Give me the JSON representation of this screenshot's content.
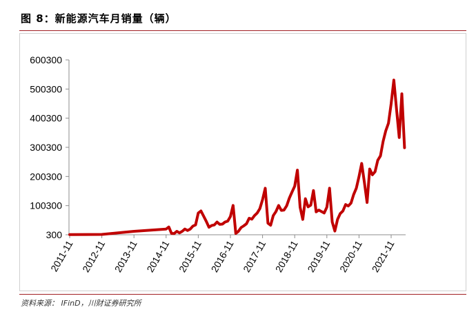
{
  "header": {
    "title": "图 8：新能源汽车月销量（辆）"
  },
  "footer": {
    "source": "资料来源： IFinD，川财证券研究所"
  },
  "colors": {
    "line": "#c00000",
    "rule": "#a11e22",
    "axis": "#8c8c8c"
  },
  "chart_data": {
    "type": "line",
    "title": "",
    "xlabel": "",
    "ylabel": "",
    "ylim": [
      300,
      600300
    ],
    "y_ticks": [
      300,
      100300,
      200300,
      300300,
      400300,
      500300,
      600300
    ],
    "x_tick_labels": [
      "2011-11",
      "2012-11",
      "2013-11",
      "2014-11",
      "2015-11",
      "2016-11",
      "2017-11",
      "2018-11",
      "2019-11",
      "2020-11",
      "2021-11"
    ],
    "grid": false,
    "legend": "none",
    "series": [
      {
        "x": [
          "2011-11",
          "2012-11",
          "2013-11",
          "2014-11",
          "2014-12",
          "2015-01",
          "2015-02",
          "2015-03",
          "2015-04",
          "2015-05",
          "2015-06",
          "2015-07",
          "2015-08",
          "2015-09",
          "2015-10",
          "2015-11",
          "2015-12",
          "2016-01",
          "2016-02",
          "2016-03",
          "2016-04",
          "2016-05",
          "2016-06",
          "2016-07",
          "2016-08",
          "2016-09",
          "2016-10",
          "2016-11",
          "2016-12",
          "2017-01",
          "2017-02",
          "2017-03",
          "2017-04",
          "2017-05",
          "2017-06",
          "2017-07",
          "2017-08",
          "2017-09",
          "2017-10",
          "2017-11",
          "2017-12",
          "2018-01",
          "2018-02",
          "2018-03",
          "2018-04",
          "2018-05",
          "2018-06",
          "2018-07",
          "2018-08",
          "2018-09",
          "2018-10",
          "2018-11",
          "2018-12",
          "2019-01",
          "2019-02",
          "2019-03",
          "2019-04",
          "2019-05",
          "2019-06",
          "2019-07",
          "2019-08",
          "2019-09",
          "2019-10",
          "2019-11",
          "2019-12",
          "2020-01",
          "2020-02",
          "2020-03",
          "2020-04",
          "2020-05",
          "2020-06",
          "2020-07",
          "2020-08",
          "2020-09",
          "2020-10",
          "2020-11",
          "2020-12",
          "2021-01",
          "2021-02",
          "2021-03",
          "2021-04",
          "2021-05",
          "2021-06",
          "2021-07",
          "2021-08",
          "2021-09",
          "2021-10",
          "2021-11",
          "2021-12",
          "2022-01",
          "2022-02",
          "2022-03",
          "2022-04"
        ],
        "values": [
          1000,
          1500,
          12000,
          20000,
          27000,
          5000,
          4500,
          12000,
          7000,
          12000,
          20000,
          15000,
          20000,
          30000,
          34000,
          75000,
          82000,
          64000,
          46000,
          26000,
          32000,
          34000,
          44000,
          36000,
          37000,
          44000,
          47000,
          63000,
          101000,
          5000,
          12000,
          25000,
          31000,
          38000,
          57000,
          54000,
          66000,
          75000,
          90000,
          121000,
          160000,
          40000,
          33000,
          66000,
          80000,
          101000,
          84000,
          85000,
          100000,
          126000,
          147000,
          167000,
          222000,
          95000,
          53000,
          124000,
          96000,
          102000,
          152000,
          79000,
          85000,
          80000,
          75000,
          95000,
          160000,
          44000,
          13000,
          53000,
          73000,
          82000,
          104000,
          99000,
          109000,
          138000,
          160000,
          200000,
          245000,
          180000,
          111000,
          226000,
          206000,
          217000,
          256000,
          271000,
          321000,
          357000,
          383000,
          450000,
          531000,
          431000,
          334000,
          484000,
          299000
        ]
      }
    ]
  }
}
